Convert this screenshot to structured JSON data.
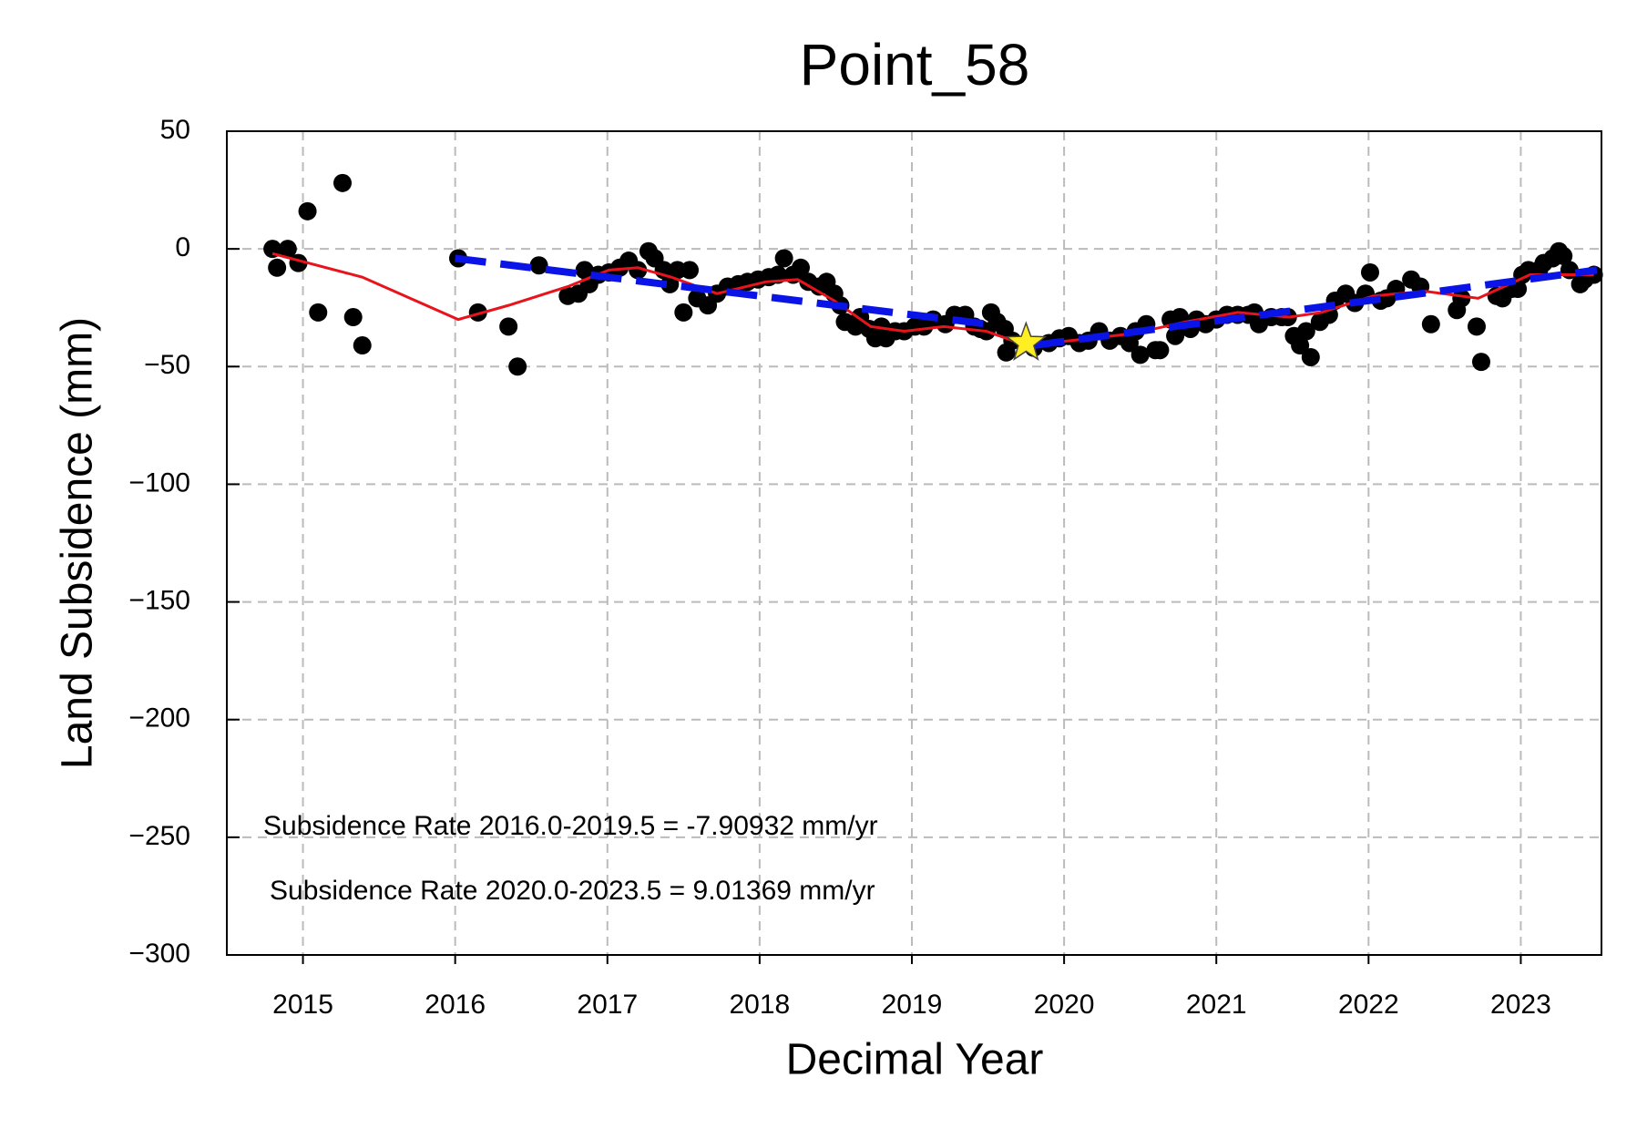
{
  "chart_data": {
    "type": "scatter",
    "title": "Point_58",
    "x_label": "Decimal Year",
    "y_label": "Land Subsidence (mm)",
    "annotations": [
      "Subsidence Rate 2016.0-2019.5 = -7.90932 mm/yr",
      "Subsidence Rate 2020.0-2023.5 = 9.01369 mm/yr"
    ],
    "xlim": [
      2014.5,
      2023.53
    ],
    "ylim": [
      -300,
      50
    ],
    "xticks": [
      2015,
      2016,
      2017,
      2018,
      2019,
      2020,
      2021,
      2022,
      2023
    ],
    "yticks": [
      {
        "value": -300,
        "label": "−300"
      },
      {
        "value": -250,
        "label": "−250"
      },
      {
        "value": -200,
        "label": "−200"
      },
      {
        "value": -150,
        "label": "−150"
      },
      {
        "value": -100,
        "label": "−100"
      },
      {
        "value": -50,
        "label": "−50"
      },
      0,
      50
    ],
    "grid": true,
    "series": [
      {
        "kind": "scatter",
        "color": "#000000",
        "x": [
          2014.8,
          2014.83,
          2014.9,
          2014.97,
          2015.03,
          2015.1,
          2015.26,
          2015.33,
          2015.39,
          2016.02,
          2016.15,
          2016.35,
          2016.41,
          2016.55,
          2016.74,
          2016.81,
          2016.85,
          2016.88,
          2016.94,
          2017.01,
          2017.08,
          2017.14,
          2017.2,
          2017.27,
          2017.31,
          2017.37,
          2017.41,
          2017.46,
          2017.5,
          2017.54,
          2017.59,
          2017.66,
          2017.72,
          2017.79,
          2017.86,
          2017.92,
          2017.99,
          2018.06,
          2018.12,
          2018.16,
          2018.22,
          2018.27,
          2018.32,
          2018.39,
          2018.44,
          2018.49,
          2018.53,
          2018.56,
          2018.63,
          2018.66,
          2018.72,
          2018.76,
          2018.8,
          2018.83,
          2018.89,
          2018.95,
          2019.02,
          2019.08,
          2019.14,
          2019.22,
          2019.28,
          2019.35,
          2019.41,
          2019.45,
          2019.49,
          2019.52,
          2019.56,
          2019.61,
          2019.62,
          2019.66,
          2019.8,
          2019.9,
          2019.97,
          2020.03,
          2020.1,
          2020.16,
          2020.23,
          2020.3,
          2020.37,
          2020.43,
          2020.47,
          2020.5,
          2020.54,
          2020.6,
          2020.63,
          2020.7,
          2020.73,
          2020.76,
          2020.83,
          2020.87,
          2020.93,
          2021.0,
          2021.07,
          2021.14,
          2021.21,
          2021.25,
          2021.28,
          2021.36,
          2021.43,
          2021.47,
          2021.51,
          2021.55,
          2021.59,
          2021.62,
          2021.68,
          2021.74,
          2021.78,
          2021.85,
          2021.91,
          2021.98,
          2022.01,
          2022.08,
          2022.12,
          2022.18,
          2022.28,
          2022.34,
          2022.41,
          2022.58,
          2022.61,
          2022.71,
          2022.74,
          2022.84,
          2022.88,
          2022.94,
          2022.98,
          2023.01,
          2023.05,
          2023.12,
          2023.15,
          2023.21,
          2023.25,
          2023.28,
          2023.32,
          2023.39,
          2023.42,
          2023.48
        ],
        "values": [
          0,
          -8,
          0,
          -6,
          16,
          -27,
          28,
          -29,
          -41,
          -4,
          -27,
          -33,
          -50,
          -7,
          -20,
          -19,
          -9,
          -15,
          -11,
          -10,
          -8,
          -5,
          -9,
          -1,
          -4,
          -9,
          -15,
          -9,
          -27,
          -9,
          -21,
          -24,
          -19,
          -16,
          -15,
          -14,
          -13,
          -12,
          -11,
          -4,
          -11,
          -8,
          -14,
          -16,
          -14,
          -19,
          -24,
          -31,
          -33,
          -29,
          -34,
          -38,
          -33,
          -38,
          -35,
          -35,
          -33,
          -33,
          -30,
          -32,
          -28,
          -28,
          -33,
          -34,
          -35,
          -27,
          -31,
          -34,
          -44,
          -39,
          -42,
          -40,
          -38,
          -37,
          -40,
          -39,
          -35,
          -39,
          -37,
          -40,
          -35,
          -45,
          -32,
          -43,
          -43,
          -30,
          -37,
          -29,
          -34,
          -30,
          -32,
          -30,
          -28,
          -28,
          -28,
          -27,
          -32,
          -29,
          -29,
          -29,
          -37,
          -41,
          -35,
          -46,
          -31,
          -28,
          -22,
          -19,
          -23,
          -19,
          -10,
          -22,
          -21,
          -17,
          -13,
          -16,
          -32,
          -26,
          -21,
          -33,
          -48,
          -20,
          -21,
          -17,
          -17,
          -11,
          -9,
          -9,
          -6,
          -4,
          -1,
          -3,
          -9,
          -15,
          -13,
          -11
        ]
      },
      {
        "kind": "line",
        "color": "#e8141c",
        "x": [
          2014.8,
          2015.39,
          2016.02,
          2016.35,
          2016.74,
          2017.01,
          2017.2,
          2017.42,
          2017.72,
          2018.04,
          2018.25,
          2018.49,
          2018.73,
          2018.95,
          2019.21,
          2019.49,
          2019.75,
          2020.04,
          2020.45,
          2020.8,
          2021.14,
          2021.48,
          2021.69,
          2022.03,
          2022.37,
          2022.72,
          2023.06,
          2023.48
        ],
        "values": [
          -2,
          -12,
          -30,
          -24,
          -16,
          -9,
          -8,
          -12,
          -19,
          -14,
          -13,
          -22,
          -33,
          -35,
          -33,
          -35,
          -41,
          -39,
          -36,
          -31,
          -27,
          -29,
          -27,
          -20,
          -18,
          -21,
          -11,
          -11
        ]
      },
      {
        "kind": "dashed",
        "color": "#0a14e6",
        "x": [
          2016.0,
          2019.5
        ],
        "values": [
          -4,
          -32
        ]
      },
      {
        "kind": "dashed",
        "color": "#0a14e6",
        "x": [
          2019.8,
          2023.5
        ],
        "values": [
          -41,
          -9
        ]
      },
      {
        "kind": "star",
        "color": "#ffee22",
        "x": [
          2019.75
        ],
        "values": [
          -40
        ]
      }
    ]
  }
}
